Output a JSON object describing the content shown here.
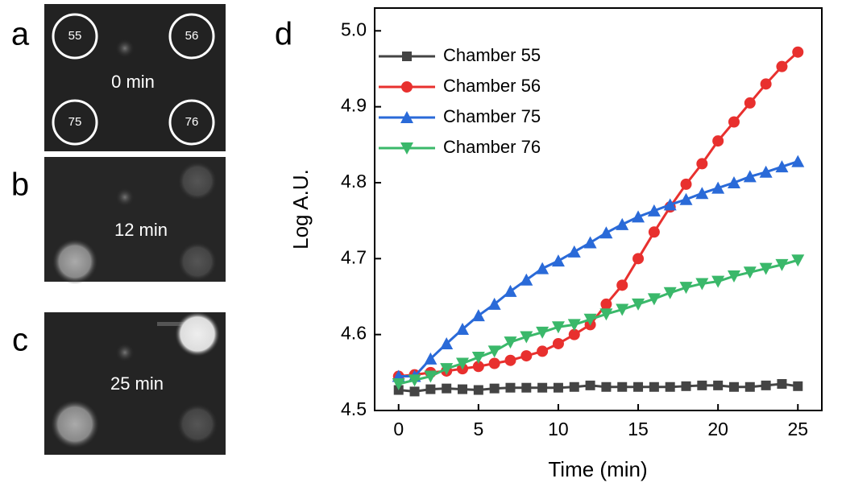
{
  "panels": [
    {
      "label": "a",
      "time": "0 min",
      "chambers": [
        "55",
        "56",
        "75",
        "76"
      ]
    },
    {
      "label": "b",
      "time": "12 min"
    },
    {
      "label": "c",
      "time": "25 min"
    }
  ],
  "chart_data": {
    "type": "line",
    "panel_label": "d",
    "x_label": "Time (min)",
    "y_label": "Log A.U.",
    "x": [
      0,
      1,
      2,
      3,
      4,
      5,
      6,
      7,
      8,
      9,
      10,
      11,
      12,
      13,
      14,
      15,
      16,
      17,
      18,
      19,
      20,
      21,
      22,
      23,
      24,
      25
    ],
    "series": [
      {
        "name": "Chamber 55",
        "color": "#444444",
        "marker": "square",
        "values": [
          4.527,
          4.525,
          4.528,
          4.529,
          4.528,
          4.527,
          4.529,
          4.53,
          4.53,
          4.53,
          4.53,
          4.531,
          4.533,
          4.531,
          4.531,
          4.531,
          4.531,
          4.531,
          4.532,
          4.533,
          4.533,
          4.531,
          4.531,
          4.533,
          4.535,
          4.532
        ]
      },
      {
        "name": "Chamber 56",
        "color": "#e8302e",
        "marker": "circle",
        "values": [
          4.545,
          4.547,
          4.55,
          4.552,
          4.555,
          4.558,
          4.562,
          4.566,
          4.572,
          4.578,
          4.588,
          4.6,
          4.613,
          4.64,
          4.665,
          4.7,
          4.735,
          4.768,
          4.798,
          4.825,
          4.855,
          4.88,
          4.905,
          4.93,
          4.953,
          4.972
        ]
      },
      {
        "name": "Chamber 75",
        "color": "#2a6ad8",
        "marker": "triangle-up",
        "values": [
          4.545,
          4.545,
          4.568,
          4.588,
          4.607,
          4.625,
          4.64,
          4.657,
          4.672,
          4.687,
          4.697,
          4.709,
          4.721,
          4.734,
          4.745,
          4.755,
          4.763,
          4.771,
          4.778,
          4.786,
          4.793,
          4.8,
          4.808,
          4.814,
          4.821,
          4.828
        ]
      },
      {
        "name": "Chamber 76",
        "color": "#3ab86a",
        "marker": "triangle-down",
        "values": [
          4.535,
          4.54,
          4.545,
          4.555,
          4.562,
          4.57,
          4.578,
          4.59,
          4.597,
          4.603,
          4.61,
          4.613,
          4.62,
          4.627,
          4.633,
          4.64,
          4.647,
          4.655,
          4.662,
          4.667,
          4.67,
          4.677,
          4.682,
          4.687,
          4.692,
          4.698
        ]
      }
    ],
    "xlim": [
      -1.5,
      26.5
    ],
    "ylim": [
      4.5,
      5.03
    ],
    "xticks": [
      0,
      5,
      10,
      15,
      20,
      25
    ],
    "yticks": [
      4.5,
      4.6,
      4.7,
      4.8,
      4.9,
      {
        "value": 5.0,
        "label": "5.0"
      }
    ],
    "grid": false,
    "legend": "upper-left"
  }
}
